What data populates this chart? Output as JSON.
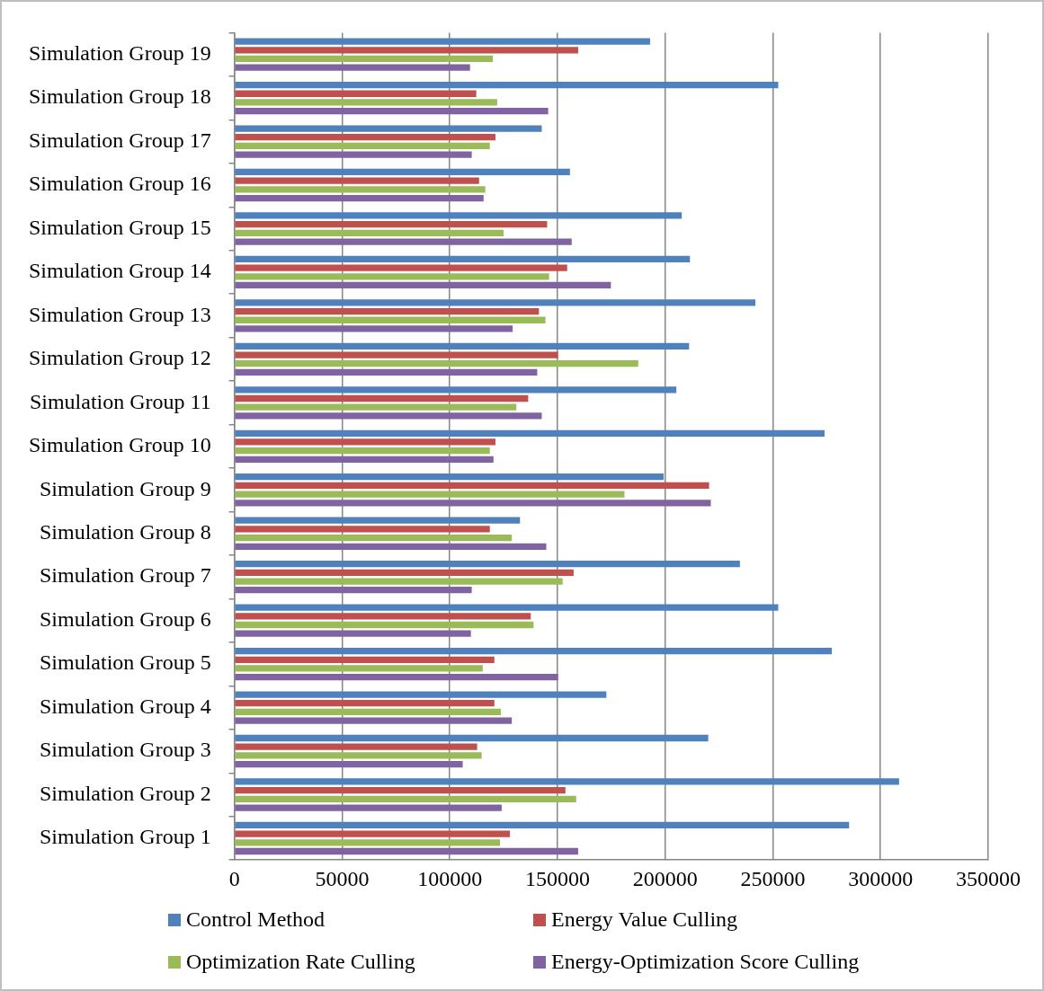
{
  "chart_data": {
    "type": "bar",
    "orientation": "horizontal",
    "categories": [
      "Simulation Group 19",
      "Simulation Group 18",
      "Simulation Group 17",
      "Simulation Group 16",
      "Simulation Group 15",
      "Simulation Group 14",
      "Simulation Group 13",
      "Simulation Group 12",
      "Simulation Group 11",
      "Simulation Group 10",
      "Simulation Group 9",
      "Simulation Group 8",
      "Simulation Group 7",
      "Simulation Group 6",
      "Simulation Group 5",
      "Simulation Group 4",
      "Simulation Group 3",
      "Simulation Group 2",
      "Simulation Group 1"
    ],
    "series": [
      {
        "name": "Control Method",
        "color": "#4f81bd",
        "values": [
          193000,
          252500,
          142700,
          155800,
          207700,
          211500,
          241900,
          211100,
          205200,
          274000,
          199300,
          132600,
          234700,
          252500,
          277400,
          172700,
          220000,
          308600,
          285400
        ]
      },
      {
        "name": "Energy Value Culling",
        "color": "#c0504d",
        "values": [
          159600,
          112300,
          121200,
          113600,
          145200,
          154500,
          141400,
          150300,
          136400,
          121200,
          220400,
          118600,
          157500,
          137600,
          120700,
          120700,
          112700,
          153700,
          127900
        ]
      },
      {
        "name": "Optimization Rate Culling",
        "color": "#9bbb59",
        "values": [
          120000,
          122000,
          118600,
          116500,
          125000,
          146100,
          144400,
          187500,
          130900,
          118600,
          181100,
          128800,
          152400,
          138900,
          115300,
          123700,
          114800,
          158700,
          123300
        ]
      },
      {
        "name": "Energy-Optimization Score Culling",
        "color": "#8064a2",
        "values": [
          109400,
          145700,
          110200,
          115700,
          156600,
          174800,
          129200,
          140600,
          142700,
          120300,
          221200,
          144800,
          110200,
          109800,
          150300,
          128800,
          106000,
          124100,
          159600
        ]
      }
    ],
    "xlim": [
      0,
      350000
    ],
    "xticks": [
      0,
      50000,
      100000,
      150000,
      200000,
      250000,
      300000,
      350000
    ],
    "grid": "x",
    "legend": "bottom"
  }
}
